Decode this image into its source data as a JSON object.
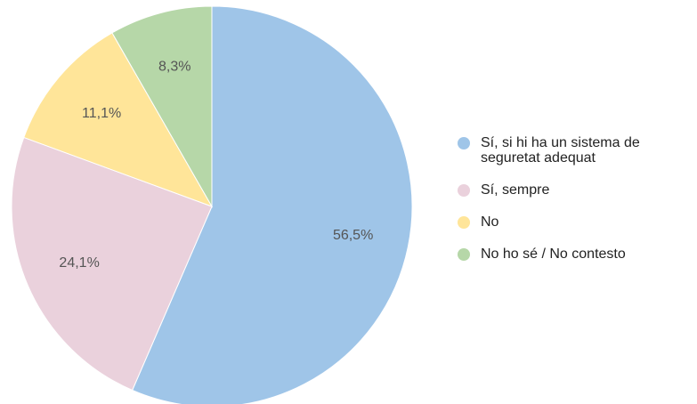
{
  "chart_data": {
    "type": "pie",
    "categories": [
      "Sí, si hi ha un sistema de seguretat adequat",
      "Sí, sempre",
      "No",
      "No ho sé / No contesto"
    ],
    "values": [
      56.5,
      24.1,
      11.1,
      8.3
    ],
    "value_labels": [
      "56,5%",
      "24,1%",
      "11,1%",
      "8,3%"
    ],
    "colors": [
      "#9fc5e8",
      "#ead1dc",
      "#ffe599",
      "#b6d7a8"
    ],
    "legend": "right"
  }
}
